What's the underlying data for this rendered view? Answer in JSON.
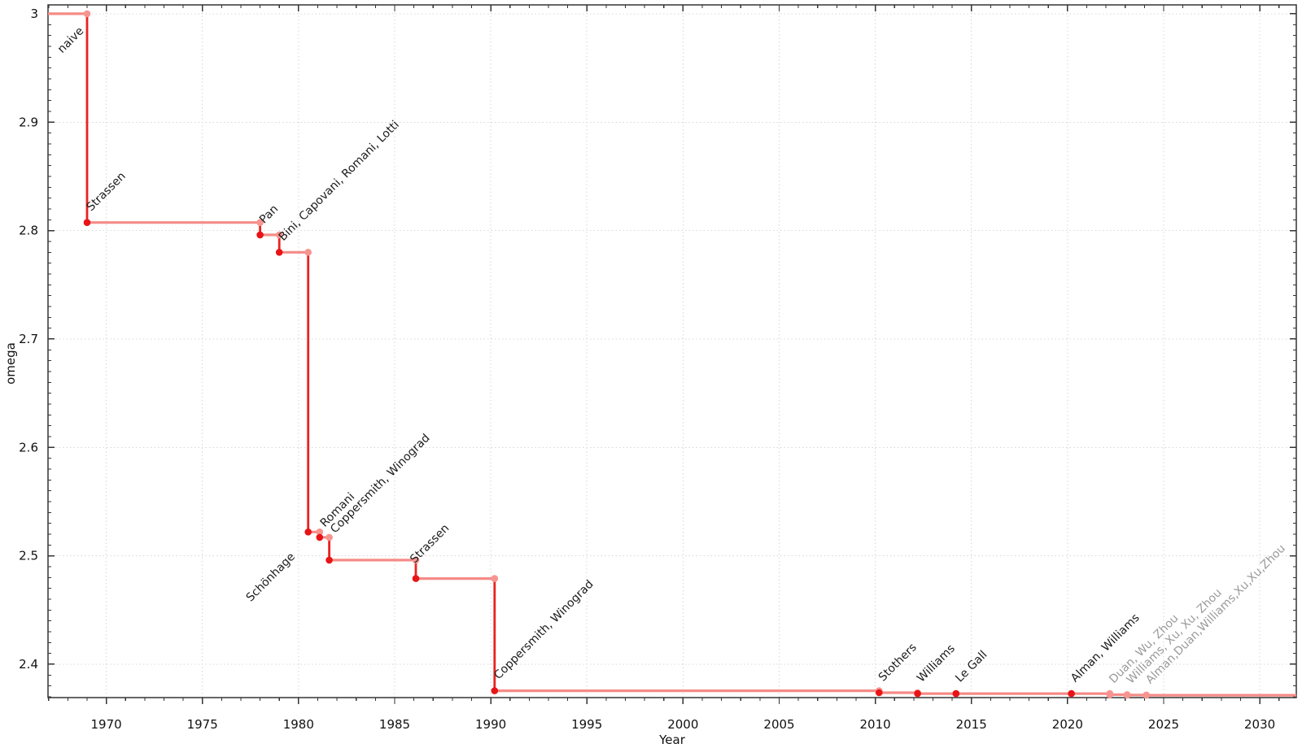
{
  "chart_data": {
    "type": "line",
    "subtype": "step-post",
    "title": "",
    "xlabel": "Year",
    "ylabel": "omega",
    "xlim": [
      1966.97,
      2031.9
    ],
    "ylim": [
      2.3692,
      3.0082
    ],
    "grid": "dotted-major",
    "legend": "none",
    "x_major_ticks": [
      1970,
      1975,
      1980,
      1985,
      1990,
      1995,
      2000,
      2005,
      2010,
      2015,
      2020,
      2025,
      2030
    ],
    "x_tick_labels": [
      "1970",
      "1975",
      "1980",
      "1985",
      "1990",
      "1995",
      "2000",
      "2005",
      "2010",
      "2015",
      "2020",
      "2025",
      "2030"
    ],
    "x_minor_step": 1,
    "y_major_ticks": [
      3.0,
      2.9,
      2.8,
      2.7,
      2.6,
      2.5,
      2.4
    ],
    "y_tick_labels": [
      "3",
      "2.9",
      "2.8",
      "2.7",
      "2.6",
      "2.5",
      "2.4"
    ],
    "y_minor_step": 0.01,
    "initial": {
      "label": "naive",
      "omega": 3,
      "label_anchor": "end",
      "label_offset": [
        -18,
        13
      ]
    },
    "points": [
      {
        "label": "Strassen",
        "year": 1969.0,
        "omega": 2.8074
      },
      {
        "label": "Pan",
        "year": 1978.0,
        "omega": 2.796
      },
      {
        "label": "Bini, Capovani, Romani, Lotti",
        "year": 1979.0,
        "omega": 2.78
      },
      {
        "label": "Schönhage",
        "year": 1980.5,
        "omega": 2.522,
        "label_anchor": "end",
        "label_offset": [
          -33,
          11
        ]
      },
      {
        "label": "Romani",
        "year": 1981.1,
        "omega": 2.517,
        "label_offset": [
          13,
          -4
        ]
      },
      {
        "label": "Coppersmith, Winograd",
        "year": 1981.6,
        "omega": 2.496,
        "label_offset": [
          28,
          -18
        ]
      },
      {
        "label": "Strassen",
        "year": 1986.1,
        "omega": 2.479,
        "label_offset": [
          12,
          -14
        ]
      },
      {
        "label": "Coppersmith, Winograd",
        "year": 1990.2,
        "omega": 2.3755
      },
      {
        "label": "Stothers",
        "year": 2010.2,
        "omega": 2.3737
      },
      {
        "label": "Williams",
        "year": 2012.2,
        "omega": 2.3729
      },
      {
        "label": "Le Gall",
        "year": 2014.2,
        "omega": 2.37286
      },
      {
        "label": "Alman, Williams",
        "year": 2020.2,
        "omega": 2.37286
      },
      {
        "label": "Duan, Wu, Zhou",
        "year": 2022.2,
        "omega": 2.37188,
        "recent": true
      },
      {
        "label": "Williams, Xu, Xu, Zhou",
        "year": 2023.1,
        "omega": 2.371552,
        "recent": true
      },
      {
        "label": "Alman,Duan,Williams,Xu,Xu,Zhou",
        "year": 2024.1,
        "omega": 2.371339,
        "recent": true
      }
    ]
  },
  "colors": {
    "step_line_light": "#f58b87",
    "drop_line_strong": "#e8231f",
    "dot_dark": "#e81416",
    "dot_light": "#f79490",
    "annotation_dark": "#1a1a1a",
    "annotation_gray": "#9a9a9a",
    "grid": "#d7d7d7",
    "axis": "#333333",
    "tick_text": "#111111",
    "background": "#ffffff"
  }
}
